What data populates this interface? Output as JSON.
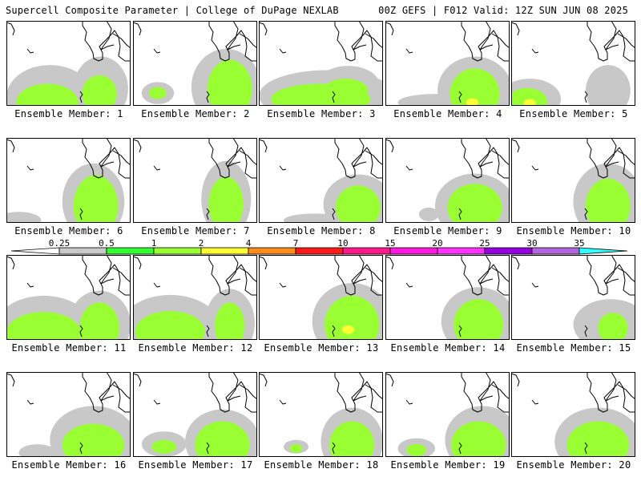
{
  "header": {
    "left": "Supercell Composite Parameter | College of DuPage NEXLAB",
    "right": "00Z GEFS | F012 Valid: 12Z SUN JUN 08 2025"
  },
  "legend": {
    "colors": [
      "#c8c8c8",
      "#33ff33",
      "#99ff33",
      "#ffff33",
      "#ff8c1a",
      "#ff1a1a",
      "#ff1a8c",
      "#ff1adf",
      "#ff33ff",
      "#9400e0",
      "#b266e0",
      "#33ffff"
    ],
    "labels": [
      "0.25",
      "0.5",
      "1",
      "2",
      "4",
      "7",
      "10",
      "15",
      "20",
      "25",
      "30",
      "35"
    ]
  },
  "members": [
    {
      "label": "Ensemble Member: 1"
    },
    {
      "label": "Ensemble Member: 2"
    },
    {
      "label": "Ensemble Member: 3"
    },
    {
      "label": "Ensemble Member: 4"
    },
    {
      "label": "Ensemble Member: 5"
    },
    {
      "label": "Ensemble Member: 6"
    },
    {
      "label": "Ensemble Member: 7"
    },
    {
      "label": "Ensemble Member: 8"
    },
    {
      "label": "Ensemble Member: 9"
    },
    {
      "label": "Ensemble Member: 10"
    },
    {
      "label": "Ensemble Member: 11"
    },
    {
      "label": "Ensemble Member: 12"
    },
    {
      "label": "Ensemble Member: 13"
    },
    {
      "label": "Ensemble Member: 14"
    },
    {
      "label": "Ensemble Member: 15"
    },
    {
      "label": "Ensemble Member: 16"
    },
    {
      "label": "Ensemble Member: 17"
    },
    {
      "label": "Ensemble Member: 18"
    },
    {
      "label": "Ensemble Member: 19"
    },
    {
      "label": "Ensemble Member: 20"
    }
  ]
}
